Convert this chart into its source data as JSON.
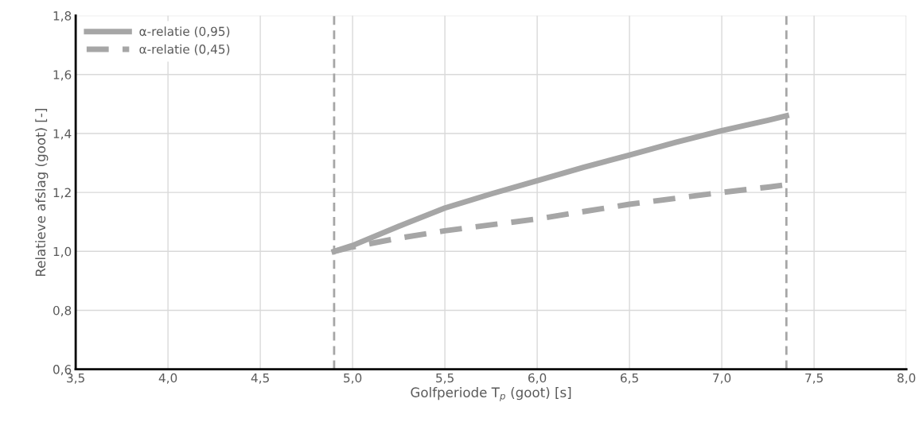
{
  "chart_data": {
    "type": "line",
    "xlabel": "Golfperiode T$_{p}$ (goot) [s]",
    "ylabel": "Relatieve afslag (goot) [-]",
    "series": [
      {
        "name": "α-relatie (0,95)",
        "color": "#a6a6a6",
        "line_style": "solid",
        "x": [
          4.9,
          5.0,
          5.25,
          5.5,
          5.75,
          6.0,
          6.25,
          6.5,
          6.75,
          7.0,
          7.25,
          7.35
        ],
        "values": [
          1.0,
          1.02,
          1.085,
          1.147,
          1.195,
          1.24,
          1.285,
          1.327,
          1.37,
          1.41,
          1.445,
          1.46
        ]
      },
      {
        "name": "α-relatie (0,45)",
        "color": "#a6a6a6",
        "line_style": "dashed",
        "x": [
          4.9,
          5.0,
          5.25,
          5.5,
          5.75,
          6.0,
          6.25,
          6.5,
          6.75,
          7.0,
          7.25,
          7.35
        ],
        "values": [
          1.0,
          1.015,
          1.045,
          1.07,
          1.09,
          1.11,
          1.135,
          1.16,
          1.18,
          1.2,
          1.218,
          1.226
        ]
      }
    ],
    "xlim": [
      3.5,
      8.0
    ],
    "xticks": [
      {
        "value": 3.5,
        "label": "3,5"
      },
      {
        "value": 4.0,
        "label": "4,0"
      },
      {
        "value": 4.5,
        "label": "4,5"
      },
      {
        "value": 5.0,
        "label": "5,0"
      },
      {
        "value": 5.5,
        "label": "5,5"
      },
      {
        "value": 6.0,
        "label": "6,0"
      },
      {
        "value": 6.5,
        "label": "6,5"
      },
      {
        "value": 7.0,
        "label": "7,0"
      },
      {
        "value": 7.5,
        "label": "7,5"
      },
      {
        "value": 8.0,
        "label": "8,0"
      }
    ],
    "ylim": [
      0.6,
      1.8
    ],
    "yticks": [
      {
        "value": 0.6,
        "label": "0,6"
      },
      {
        "value": 0.8,
        "label": "0,8"
      },
      {
        "value": 1.0,
        "label": "1,0"
      },
      {
        "value": 1.2,
        "label": "1,2"
      },
      {
        "value": 1.4,
        "label": "1,4"
      },
      {
        "value": 1.6,
        "label": "1,6"
      },
      {
        "value": 1.8,
        "label": "1,8"
      }
    ],
    "ref_lines": [
      {
        "axis": "x",
        "value": 4.9,
        "color": "#a6a6a6",
        "line_style": "dashed"
      },
      {
        "axis": "x",
        "value": 7.35,
        "color": "#a6a6a6",
        "line_style": "dashed"
      }
    ],
    "grid": true,
    "legend": "top left"
  }
}
